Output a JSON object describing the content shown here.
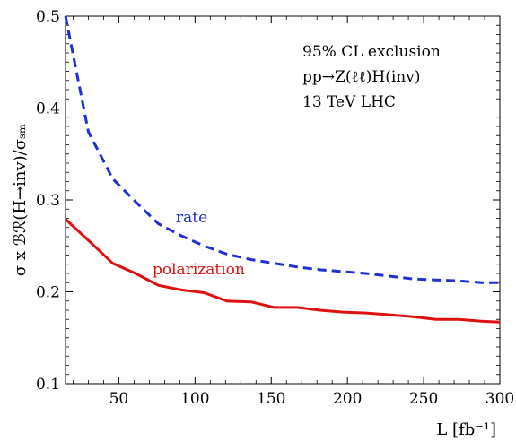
{
  "chart_data": {
    "type": "line",
    "xlabel": "L [fb⁻¹]",
    "ylabel": "σ x ℬℛ(H→inv)/σₛₘ",
    "xlim": [
      15,
      300
    ],
    "ylim": [
      0.1,
      0.5
    ],
    "x_ticks": [
      50,
      100,
      150,
      200,
      250,
      300
    ],
    "y_ticks": [
      0.1,
      0.2,
      0.3,
      0.4,
      0.5
    ],
    "x_tick_labels": [
      "50",
      "100",
      "150",
      "200",
      "250",
      "300"
    ],
    "y_tick_labels": [
      "0.1",
      "0.2",
      "0.3",
      "0.4",
      "0.5"
    ],
    "grid": false,
    "annotations": [
      "95% CL exclusion",
      "pp→Z(ℓℓ)H(inv)",
      "13 TeV LHC"
    ],
    "series": [
      {
        "name": "rate",
        "color": "#1f2fd6",
        "dash": true,
        "x": [
          15,
          30,
          46,
          61,
          76,
          91,
          106,
          121,
          137,
          152,
          167,
          182,
          197,
          212,
          228,
          243,
          258,
          273,
          288,
          300
        ],
        "y": [
          0.5,
          0.374,
          0.323,
          0.298,
          0.274,
          0.261,
          0.25,
          0.241,
          0.235,
          0.231,
          0.227,
          0.224,
          0.222,
          0.22,
          0.217,
          0.214,
          0.213,
          0.212,
          0.21,
          0.21
        ]
      },
      {
        "name": "polarization",
        "color": "#e01010",
        "dash": false,
        "x": [
          15,
          30,
          46,
          61,
          76,
          91,
          106,
          121,
          137,
          152,
          167,
          182,
          197,
          212,
          228,
          243,
          258,
          273,
          288,
          300
        ],
        "y": [
          0.279,
          0.256,
          0.231,
          0.22,
          0.207,
          0.202,
          0.199,
          0.19,
          0.189,
          0.183,
          0.183,
          0.18,
          0.178,
          0.177,
          0.175,
          0.173,
          0.17,
          0.17,
          0.168,
          0.167
        ]
      }
    ]
  }
}
